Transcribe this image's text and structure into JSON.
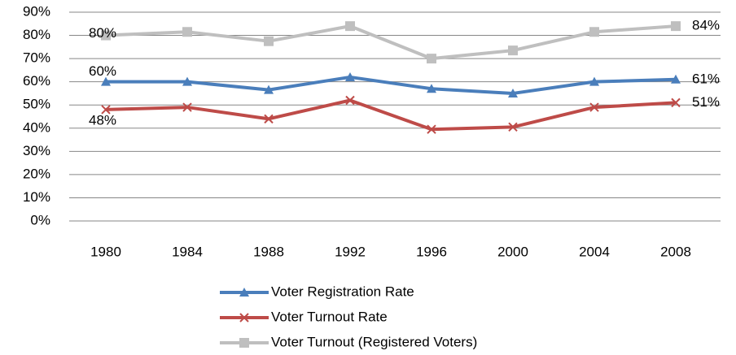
{
  "chart_data": {
    "type": "line",
    "categories": [
      "1980",
      "1984",
      "1988",
      "1992",
      "1996",
      "2000",
      "2004",
      "2008"
    ],
    "series": [
      {
        "name": "Voter Registration Rate",
        "color": "#4a7ebb",
        "marker": "triangle",
        "values": [
          60,
          60,
          56.5,
          62,
          57,
          55,
          60,
          61
        ],
        "value_labels": [
          "60%",
          null,
          null,
          null,
          null,
          null,
          null,
          "61%"
        ]
      },
      {
        "name": "Voter Turnout Rate",
        "color": "#be4b48",
        "marker": "x",
        "values": [
          48,
          49,
          44,
          52,
          39.5,
          40.5,
          49,
          51
        ],
        "value_labels": [
          "48%",
          null,
          null,
          null,
          null,
          null,
          null,
          "51%"
        ]
      },
      {
        "name": "Voter Turnout (Registered Voters)",
        "color": "#bfbfbf",
        "marker": "square",
        "values": [
          80,
          81.5,
          77.5,
          84,
          70,
          73.5,
          81.5,
          84
        ],
        "value_labels": [
          "80%",
          null,
          null,
          null,
          null,
          null,
          null,
          "84%"
        ]
      }
    ],
    "ylim": [
      0,
      90
    ],
    "yticks": [
      {
        "value": 0,
        "label": "0%"
      },
      {
        "value": 10,
        "label": "10%"
      },
      {
        "value": 20,
        "label": "20%"
      },
      {
        "value": 30,
        "label": "30%"
      },
      {
        "value": 40,
        "label": "40%"
      },
      {
        "value": 50,
        "label": "50%"
      },
      {
        "value": 60,
        "label": "60%"
      },
      {
        "value": 70,
        "label": "70%"
      },
      {
        "value": 80,
        "label": "80%"
      },
      {
        "value": 90,
        "label": "90%"
      }
    ],
    "grid": true,
    "legend": "bottom"
  }
}
